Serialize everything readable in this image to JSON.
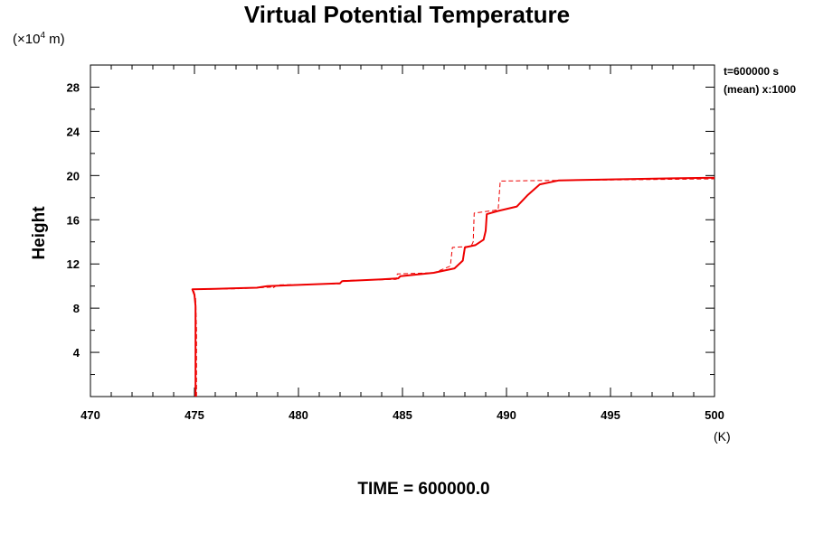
{
  "chart_data": {
    "type": "line",
    "title": "Virtual Potential Temperature",
    "xlabel": "(K)",
    "ylabel": "Height",
    "y_unit_prefix": "(×10",
    "y_unit_exp": "4",
    "y_unit_suffix": " m)",
    "xlim": [
      470,
      500
    ],
    "ylim": [
      0,
      30
    ],
    "x_ticks": [
      470,
      475,
      480,
      485,
      490,
      495,
      500
    ],
    "y_ticks": [
      4,
      8,
      12,
      16,
      20,
      24,
      28
    ],
    "annotations": [
      "t=600000 s",
      "(mean) x:1000"
    ],
    "footer": "TIME = 600000.0",
    "series": [
      {
        "style": "solid",
        "color": "#ee0000",
        "points": [
          [
            475.05,
            0
          ],
          [
            475.05,
            3
          ],
          [
            475.05,
            6
          ],
          [
            475.05,
            8.2
          ],
          [
            475.0,
            9.2
          ],
          [
            474.9,
            9.7
          ],
          [
            476.0,
            9.75
          ],
          [
            478.0,
            9.85
          ],
          [
            478.5,
            10.0
          ],
          [
            480.0,
            10.1
          ],
          [
            482.0,
            10.25
          ],
          [
            482.1,
            10.45
          ],
          [
            484.0,
            10.6
          ],
          [
            484.8,
            10.7
          ],
          [
            484.9,
            10.9
          ],
          [
            486.5,
            11.2
          ],
          [
            487.5,
            11.6
          ],
          [
            487.9,
            12.3
          ],
          [
            488.0,
            13.5
          ],
          [
            488.5,
            13.7
          ],
          [
            488.9,
            14.2
          ],
          [
            489.0,
            15.0
          ],
          [
            489.05,
            16.5
          ],
          [
            489.6,
            16.8
          ],
          [
            490.5,
            17.2
          ],
          [
            491.0,
            18.2
          ],
          [
            491.6,
            19.2
          ],
          [
            492.5,
            19.55
          ],
          [
            495.0,
            19.65
          ],
          [
            498.0,
            19.75
          ],
          [
            500.0,
            19.8
          ]
        ]
      },
      {
        "style": "dashed",
        "color": "#ee0000",
        "points": [
          [
            475.1,
            0
          ],
          [
            475.1,
            3
          ],
          [
            475.1,
            6
          ],
          [
            475.05,
            9.0
          ],
          [
            474.95,
            9.7
          ],
          [
            477.0,
            9.75
          ],
          [
            478.7,
            9.9
          ],
          [
            478.75,
            9.8
          ],
          [
            479.0,
            10.1
          ],
          [
            482.0,
            10.2
          ],
          [
            482.1,
            10.5
          ],
          [
            484.7,
            10.6
          ],
          [
            484.75,
            11.1
          ],
          [
            486.5,
            11.2
          ],
          [
            487.3,
            11.8
          ],
          [
            487.4,
            13.5
          ],
          [
            488.3,
            13.6
          ],
          [
            488.4,
            14.0
          ],
          [
            488.45,
            16.6
          ],
          [
            489.6,
            16.9
          ],
          [
            489.7,
            19.5
          ],
          [
            492.0,
            19.55
          ],
          [
            495.0,
            19.6
          ],
          [
            500.0,
            19.7
          ]
        ]
      }
    ]
  }
}
